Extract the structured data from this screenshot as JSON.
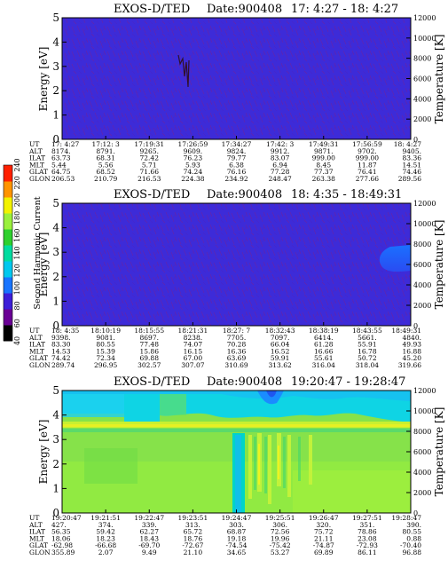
{
  "chart_data": [
    {
      "type": "heatmap",
      "title_parts": [
        "EXOS-D/TED",
        "Date:900408",
        "17: 4:27 - 18: 4:27"
      ],
      "ylabel": "Energy [eV]",
      "y2label": "Temperature [K]",
      "ylim": [
        0,
        5
      ],
      "y2lim": [
        0,
        12000
      ],
      "yticks": [
        "0",
        "1",
        "2",
        "3",
        "4",
        "5"
      ],
      "y2ticks": [
        "0",
        "2000",
        "4000",
        "6000",
        "8000",
        "10000",
        "12000"
      ],
      "row_labels": [
        "UT",
        "ALT",
        "ILAT",
        "MLT",
        "GLAT",
        "GLON"
      ],
      "columns": [
        [
          "17: 4:27",
          "8174.",
          "63.73",
          "5.44",
          "64.75",
          "206.53"
        ],
        [
          "17:12: 3",
          "8791.",
          "68.31",
          "5.56",
          "68.52",
          "210.79"
        ],
        [
          "17:19:31",
          "9265.",
          "72.42",
          "5.71",
          "71.66",
          "216.53"
        ],
        [
          "17:26:59",
          "9609.",
          "76.23",
          "5.93",
          "74.24",
          "224.38"
        ],
        [
          "17:34:27",
          "9824.",
          "79.77",
          "6.38",
          "76.16",
          "234.92"
        ],
        [
          "17:42: 3",
          "9912.",
          "83.07",
          "6.94",
          "77.28",
          "248.47"
        ],
        [
          "17:49:31",
          "9871.",
          "999.00",
          "8.45",
          "77.37",
          "263.38"
        ],
        [
          "17:56:59",
          "9702.",
          "999.00",
          "11.87",
          "76.41",
          "277.66"
        ],
        [
          "18: 4:27",
          "9405.",
          "83.36",
          "14.51",
          "74.46",
          "289.56"
        ]
      ],
      "background": "#3d2bd8"
    },
    {
      "type": "heatmap",
      "title_parts": [
        "EXOS-D/TED",
        "Date:900408",
        "18: 4:35 - 18:49:31"
      ],
      "ylabel": "Energy [eV]",
      "y2label": "Temperature [K]",
      "ylim": [
        0,
        5
      ],
      "y2lim": [
        0,
        12000
      ],
      "yticks": [
        "0",
        "1",
        "2",
        "3",
        "4",
        "5"
      ],
      "y2ticks": [
        "0",
        "2000",
        "4000",
        "6000",
        "8000",
        "10000",
        "12000"
      ],
      "row_labels": [
        "UT",
        "ALT",
        "ILAT",
        "MLT",
        "GLAT",
        "GLON"
      ],
      "columns": [
        [
          "18: 4:35",
          "9398.",
          "83.30",
          "14.53",
          "74.42",
          "289.74"
        ],
        [
          "18:10:19",
          "9081.",
          "80.55",
          "15.39",
          "72.34",
          "296.95"
        ],
        [
          "18:15:55",
          "8697.",
          "77.48",
          "15.86",
          "69.88",
          "302.57"
        ],
        [
          "18:21:31",
          "8238.",
          "74.07",
          "16.15",
          "67.00",
          "307.07"
        ],
        [
          "18:27: 7",
          "7705.",
          "70.28",
          "16.36",
          "63.69",
          "310.69"
        ],
        [
          "18:32:43",
          "7097.",
          "66.04",
          "16.52",
          "59.91",
          "313.62"
        ],
        [
          "18:38:19",
          "6414.",
          "61.28",
          "16.66",
          "55.61",
          "316.04"
        ],
        [
          "18:43:55",
          "5661.",
          "55.91",
          "16.78",
          "50.72",
          "318.04"
        ],
        [
          "18:49:31",
          "4840.",
          "49.93",
          "16.88",
          "45.20",
          "319.66"
        ]
      ],
      "background": "#3d2bd8"
    },
    {
      "type": "heatmap",
      "title_parts": [
        "EXOS-D/TED",
        "Date:900408",
        "19:20:47 - 19:28:47"
      ],
      "ylabel": "Energy [eV]",
      "y2label": "Temperature [K]",
      "ylim": [
        0,
        5
      ],
      "y2lim": [
        0,
        12000
      ],
      "yticks": [
        "0",
        "1",
        "2",
        "3",
        "4",
        "5"
      ],
      "y2ticks": [
        "0",
        "2000",
        "4000",
        "6000",
        "8000",
        "10000",
        "12000"
      ],
      "row_labels": [
        "UT",
        "ALT",
        "ILAT",
        "MLT",
        "GLAT",
        "GLON"
      ],
      "columns": [
        [
          "19:20:47",
          "427.",
          "56.35",
          "18.06",
          "-62.98",
          "355.89"
        ],
        [
          "19:21:51",
          "374.",
          "59.42",
          "18.23",
          "-66.68",
          "2.07"
        ],
        [
          "19:22:47",
          "339.",
          "62.27",
          "18.43",
          "-69.70",
          "9.49"
        ],
        [
          "19:23:51",
          "313.",
          "65.72",
          "18.76",
          "-72.67",
          "21.10"
        ],
        [
          "19:24:47",
          "303.",
          "68.87",
          "19.18",
          "-74.54",
          "34.65"
        ],
        [
          "19:25:51",
          "306.",
          "72.56",
          "19.96",
          "-75.42",
          "53.27"
        ],
        [
          "19:26:47",
          "320.",
          "75.72",
          "21.11",
          "-74.87",
          "69.89"
        ],
        [
          "19:27:51",
          "351.",
          "78.86",
          "23.08",
          "-72.93",
          "86.11"
        ],
        [
          "19:28:47",
          "390.",
          "80.55",
          "0.88",
          "-70.40",
          "96.88"
        ]
      ],
      "background": "#86e24a"
    }
  ],
  "colorbar": {
    "label": "Second Harmonic Current",
    "ticks": [
      "40",
      "60",
      "80",
      "100",
      "120",
      "140",
      "160",
      "180",
      "200",
      "220",
      "240"
    ],
    "colors": [
      "#000000",
      "#6a0095",
      "#3c1ed8",
      "#1874ff",
      "#00c8ee",
      "#00dca0",
      "#2ed02e",
      "#9af03c",
      "#f2f200",
      "#ff9400",
      "#ff2000"
    ]
  }
}
